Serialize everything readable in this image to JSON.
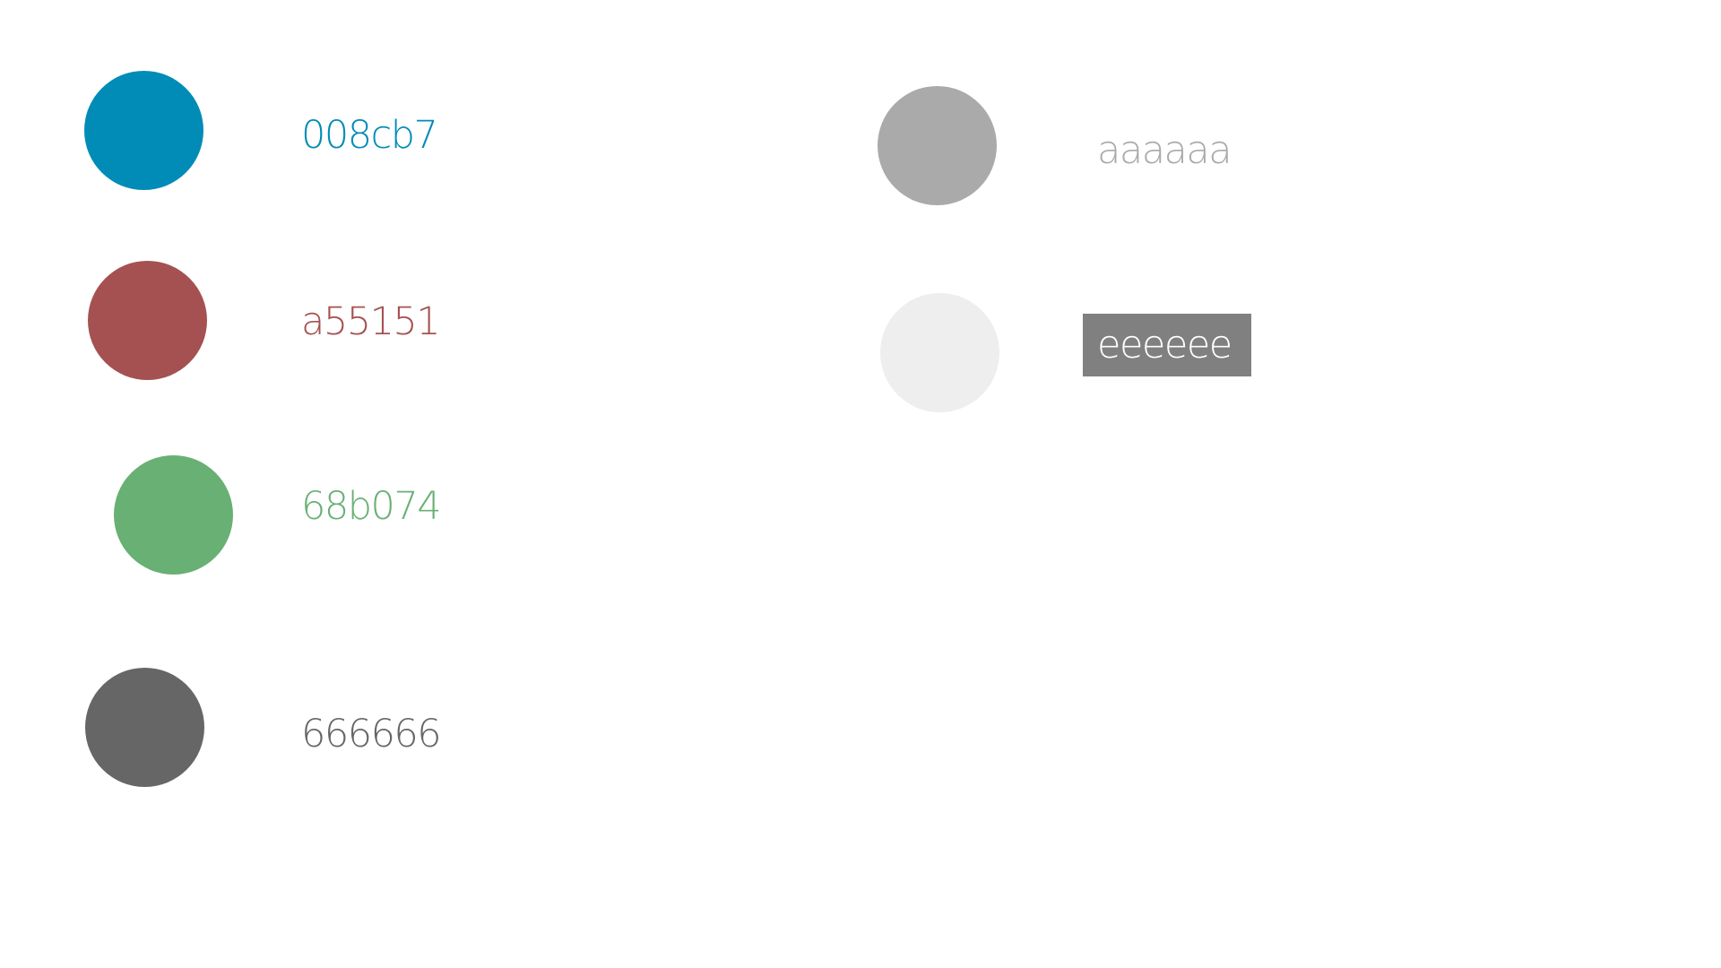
{
  "palette": {
    "colors": [
      {
        "label": "008cb7",
        "hex": "#008cb7"
      },
      {
        "label": "a55151",
        "hex": "#a55151"
      },
      {
        "label": "68b074",
        "hex": "#68b074"
      },
      {
        "label": "666666",
        "hex": "#666666"
      },
      {
        "label": "aaaaaa",
        "hex": "#aaaaaa"
      },
      {
        "label": "eeeeee",
        "hex": "#eeeeee",
        "label_background": "#808080",
        "label_color": "#ffffff"
      }
    ]
  }
}
